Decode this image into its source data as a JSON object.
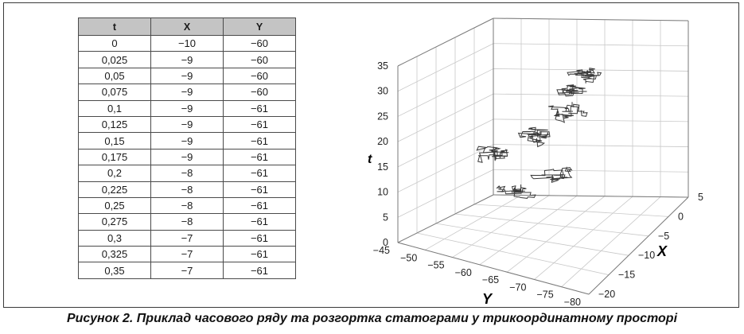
{
  "table": {
    "headers": [
      "t",
      "X",
      "Y"
    ],
    "rows": [
      [
        "0",
        "−10",
        "−60"
      ],
      [
        "0,025",
        "−9",
        "−60"
      ],
      [
        "0,05",
        "−9",
        "−60"
      ],
      [
        "0,075",
        "−9",
        "−60"
      ],
      [
        "0,1",
        "−9",
        "−61"
      ],
      [
        "0,125",
        "−9",
        "−61"
      ],
      [
        "0,15",
        "−9",
        "−61"
      ],
      [
        "0,175",
        "−9",
        "−61"
      ],
      [
        "0,2",
        "−8",
        "−61"
      ],
      [
        "0,225",
        "−8",
        "−61"
      ],
      [
        "0,25",
        "−8",
        "−61"
      ],
      [
        "0,275",
        "−8",
        "−61"
      ],
      [
        "0,3",
        "−7",
        "−61"
      ],
      [
        "0,325",
        "−7",
        "−61"
      ],
      [
        "0,35",
        "−7",
        "−61"
      ]
    ]
  },
  "chart_data": {
    "type": "line",
    "subtype": "3d-trajectory",
    "xlabel": "Y",
    "ylabel": "X",
    "zlabel": "t",
    "y_axis_ticks": [
      "−45",
      "−50",
      "−55",
      "−60",
      "−65",
      "−70",
      "−75",
      "−80"
    ],
    "x_axis_ticks": [
      "5",
      "0",
      "−5",
      "−10",
      "−15",
      "−20"
    ],
    "t_axis_ticks": [
      "35",
      "30",
      "25",
      "20",
      "15",
      "10",
      "5",
      "0"
    ],
    "ylim": [
      -80,
      -45
    ],
    "xlim": [
      -20,
      5
    ],
    "tlim": [
      0,
      35
    ],
    "grid": true,
    "series_color": "#3a3a3a"
  },
  "caption": "Рисунок 2. Приклад часового ряду та розгортка статограми у трикоординатному просторі"
}
